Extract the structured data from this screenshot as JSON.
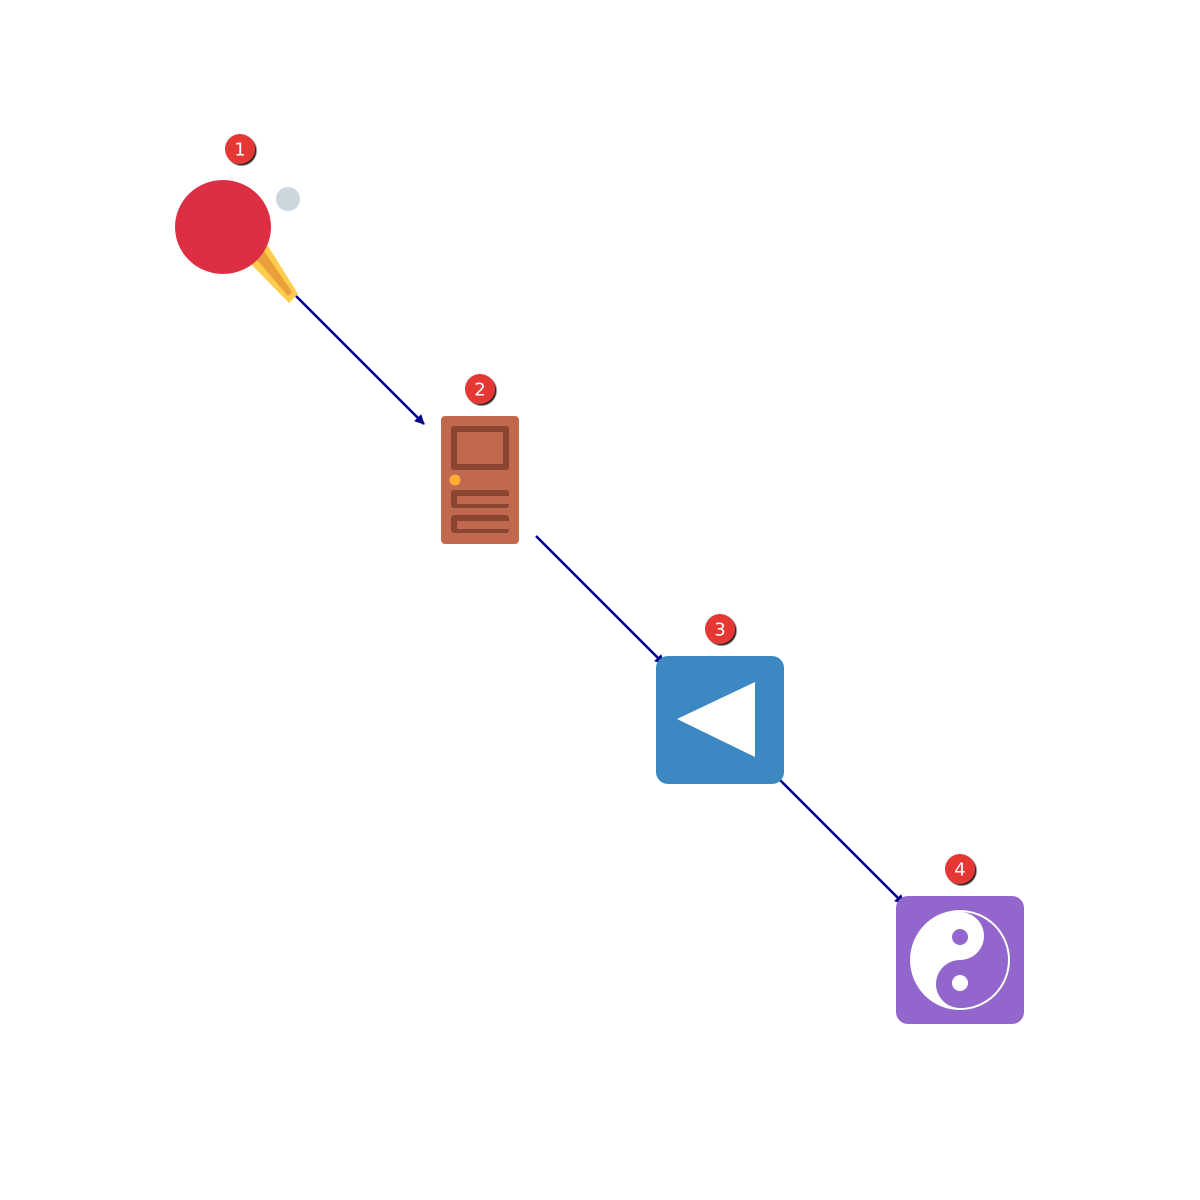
{
  "diagram": {
    "nodes": [
      {
        "id": "n1",
        "badge": "1",
        "icon": "ping-pong-paddle-icon"
      },
      {
        "id": "n2",
        "badge": "2",
        "icon": "door-icon"
      },
      {
        "id": "n3",
        "badge": "3",
        "icon": "reverse-button-icon"
      },
      {
        "id": "n4",
        "badge": "4",
        "icon": "yin-yang-icon"
      }
    ],
    "edges": [
      {
        "from": "n1",
        "to": "n2"
      },
      {
        "from": "n2",
        "to": "n3"
      },
      {
        "from": "n3",
        "to": "n4"
      }
    ]
  },
  "colors": {
    "arrow": "#00008b",
    "badge": "#e53935",
    "paddle": "#dd2e44",
    "paddle_handle": "#ffcc4d",
    "ball": "#ccd6dd",
    "door": "#c1694f",
    "door_inset": "#8a4633",
    "door_knob": "#ffac33",
    "reverse_button": "#3b88c3",
    "yin_yang": "#9266cc"
  }
}
